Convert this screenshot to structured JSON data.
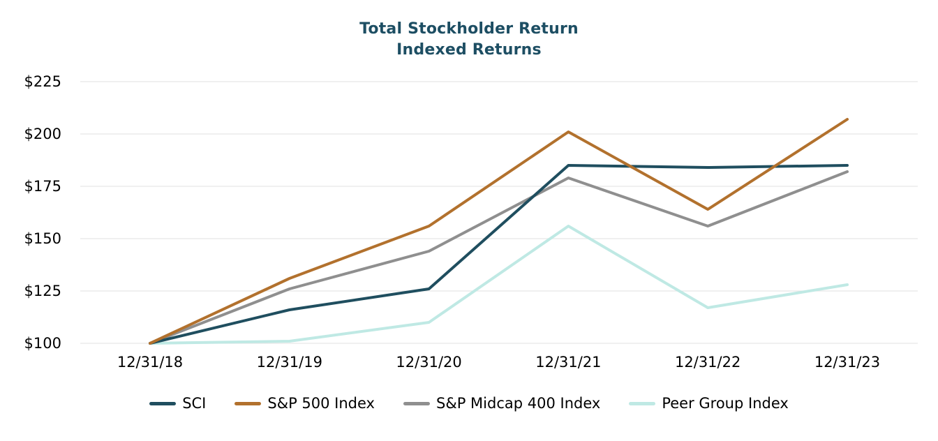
{
  "chart_data": {
    "type": "line",
    "title": "Total Stockholder Return",
    "subtitle": "Indexed Returns",
    "title_color": "#1D4E63",
    "gridline_color": "#E7E7E7",
    "x_categories": [
      "12/31/18",
      "12/31/19",
      "12/31/20",
      "12/31/21",
      "12/31/22",
      "12/31/23"
    ],
    "y_tick_values": [
      225,
      200,
      175,
      150,
      125,
      100
    ],
    "y_tick_prefix": "$",
    "ylim": [
      100,
      225
    ],
    "grid": "horizontal-only",
    "legend_position": "bottom",
    "series": [
      {
        "name": "SCI",
        "color": "#1F4E5F",
        "values": [
          100,
          116,
          126,
          185,
          184,
          185
        ]
      },
      {
        "name": "S&P 500 Index",
        "color": "#B2712D",
        "values": [
          100,
          131,
          156,
          201,
          164,
          207
        ]
      },
      {
        "name": "S&P Midcap 400 Index",
        "color": "#8F8F8F",
        "values": [
          100,
          126,
          144,
          179,
          156,
          182
        ]
      },
      {
        "name": "Peer Group Index",
        "color": "#BFE9E4",
        "values": [
          100,
          101,
          110,
          156,
          117,
          128
        ]
      }
    ]
  }
}
